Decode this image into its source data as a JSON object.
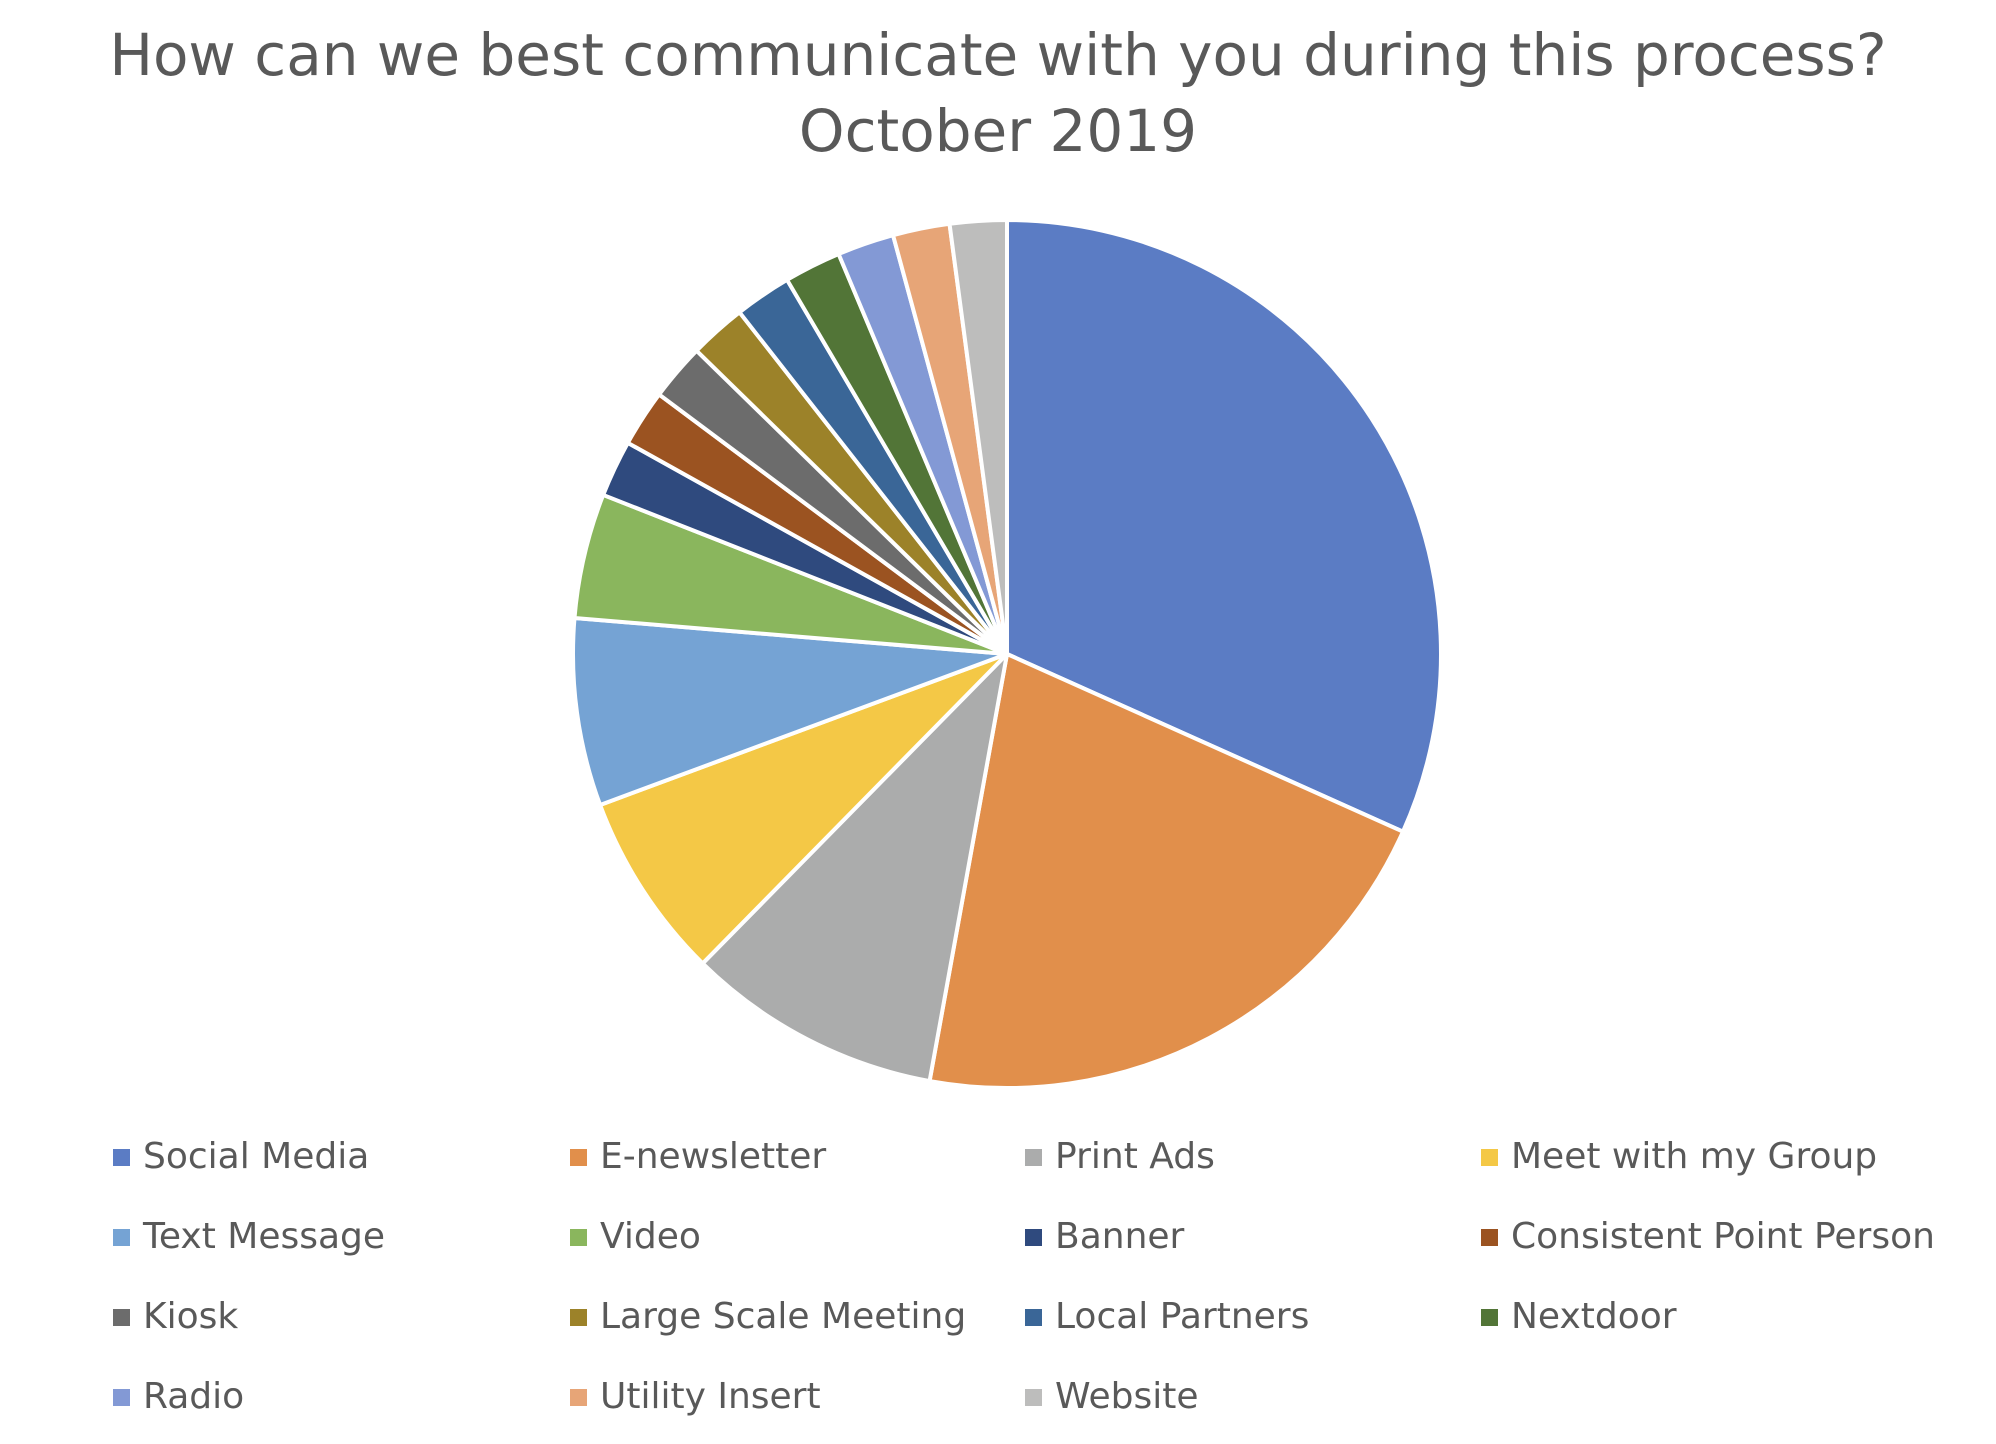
{
  "chart_data": {
    "type": "pie",
    "title": "How can we best communicate with you during this process?",
    "subtitle": "October 2019",
    "legend_position": "bottom",
    "categories": [
      "Social Media",
      "E-newsletter",
      "Print Ads",
      "Meet with my Group",
      "Text Message",
      "Video",
      "Banner",
      "Consistent Point Person",
      "Kiosk",
      "Large Scale Meeting",
      "Local Partners",
      "Nextdoor",
      "Radio",
      "Utility Insert",
      "Website"
    ],
    "values": [
      15,
      10,
      4.5,
      3.3,
      3.3,
      2.2,
      1,
      1,
      1,
      1,
      1,
      1,
      1,
      1,
      1
    ],
    "colors": [
      "#5B7CC4",
      "#E18F4B",
      "#ABACAC",
      "#F4C846",
      "#75A3D4",
      "#8AB65D",
      "#2F4A7E",
      "#9B5321",
      "#6C6C6C",
      "#9C8229",
      "#3A6697",
      "#527537",
      "#8399D5",
      "#E7A577",
      "#BDBDBC"
    ]
  }
}
